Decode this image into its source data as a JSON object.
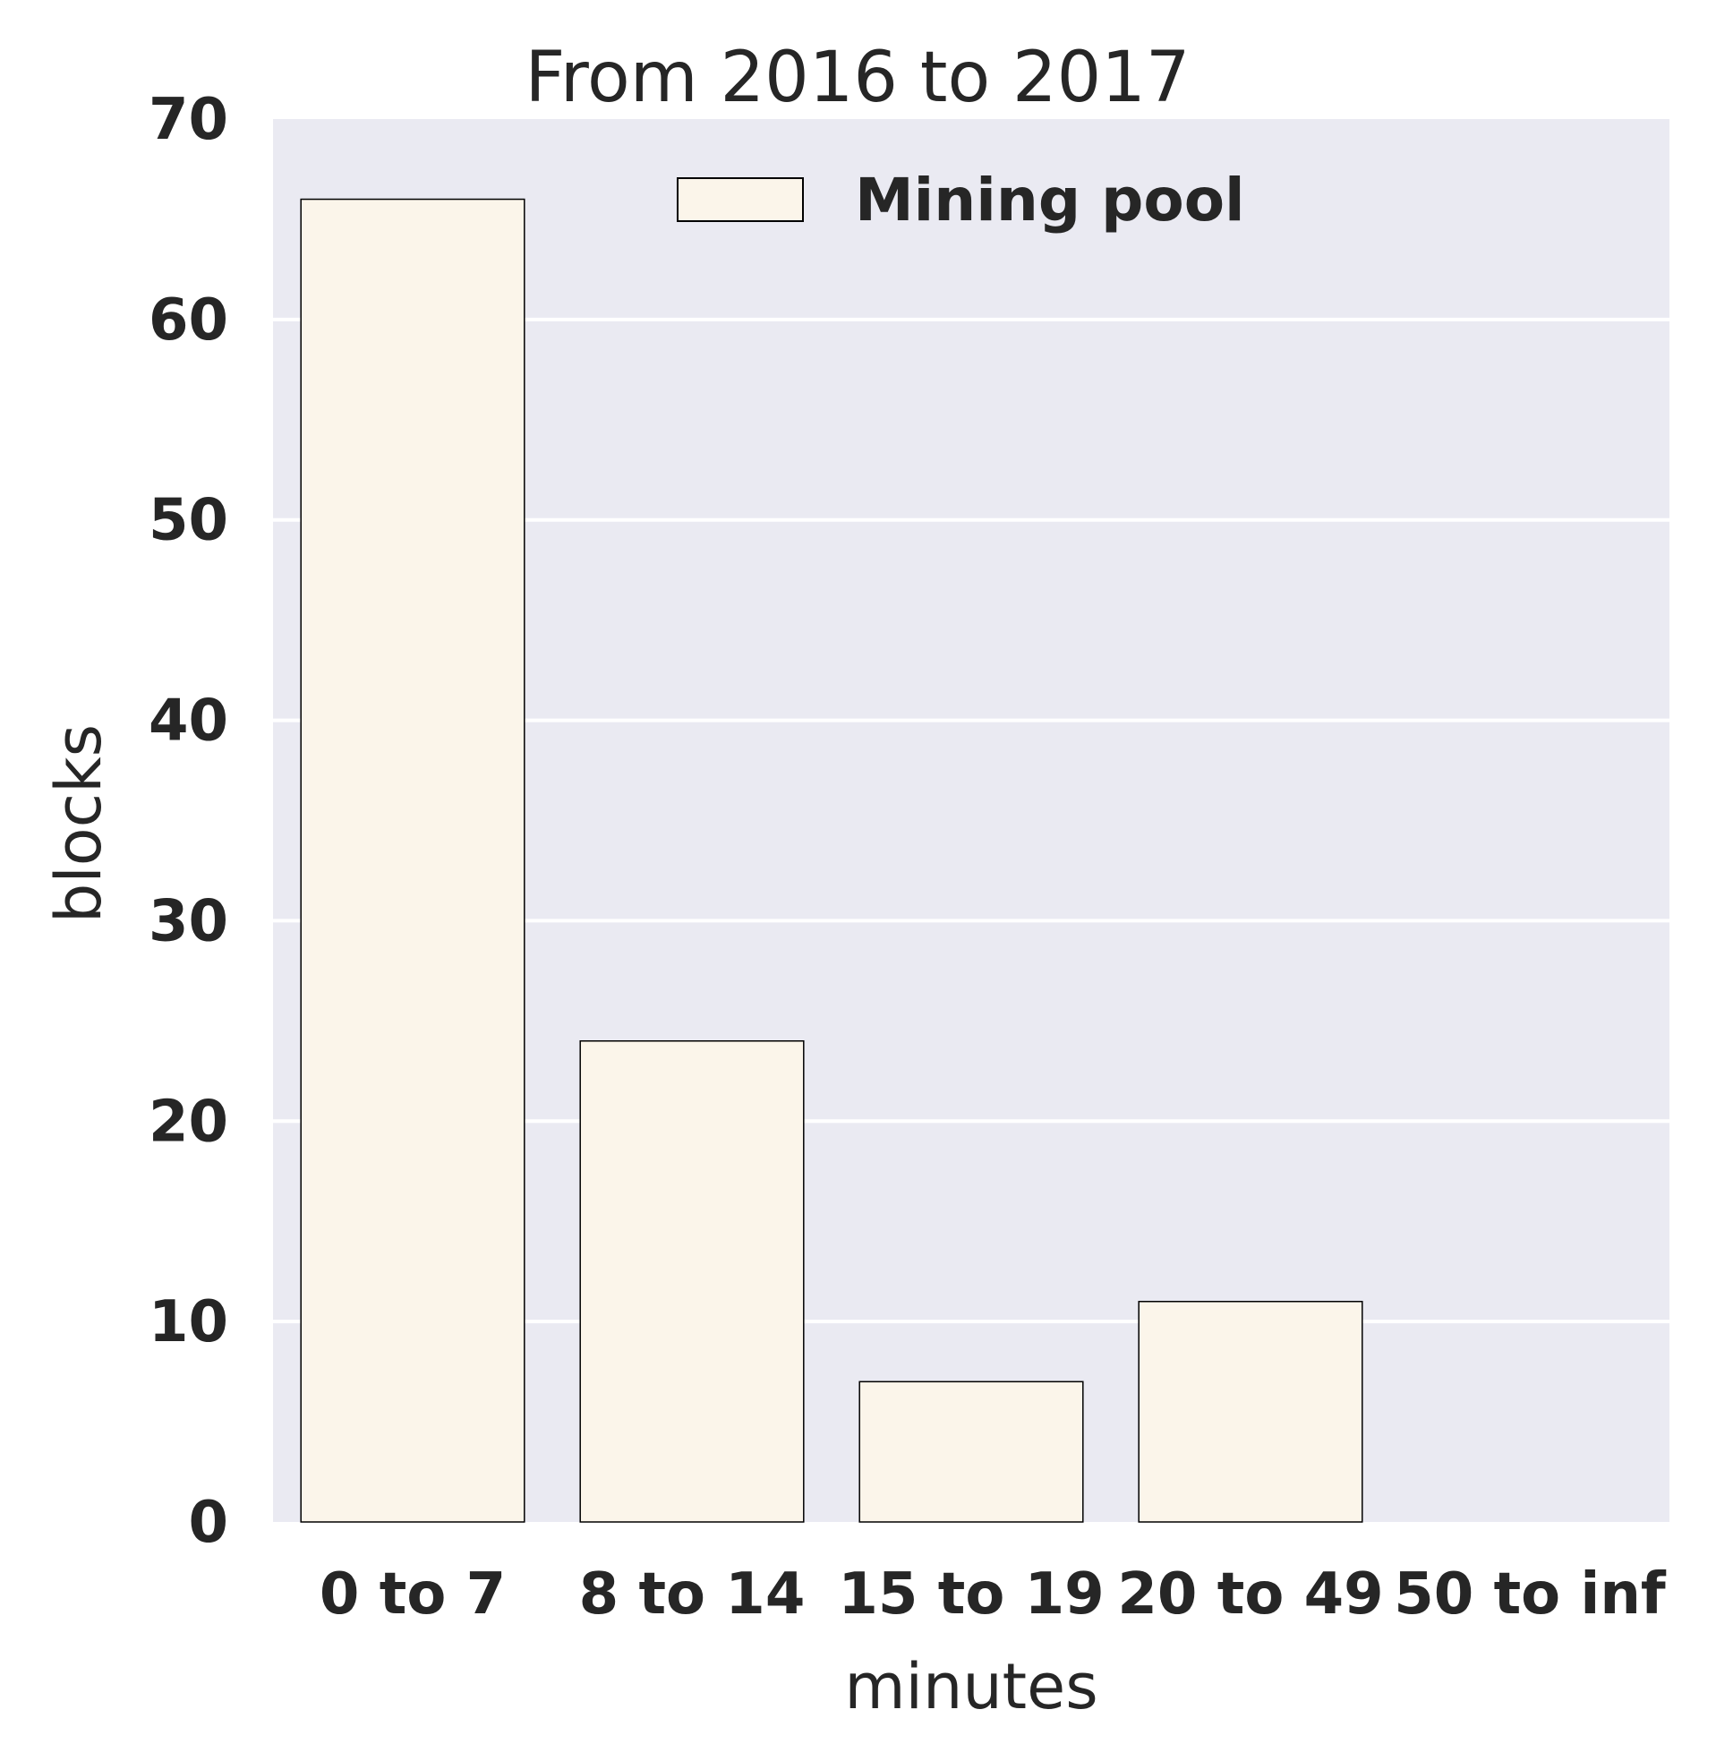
{
  "chart_data": {
    "type": "bar",
    "title": "From 2016 to 2017",
    "xlabel": "minutes",
    "ylabel": "blocks",
    "categories": [
      "0 to 7",
      "8 to 14",
      "15 to 19",
      "20 to 49",
      "50 to inf"
    ],
    "series": [
      {
        "name": "Mining pool",
        "values": [
          66,
          24,
          7,
          11,
          0
        ]
      }
    ],
    "ylim": [
      0,
      70
    ],
    "yticks": [
      0,
      10,
      20,
      30,
      40,
      50,
      60,
      70
    ],
    "grid": true,
    "legend_position": "top-center",
    "colors": {
      "plot_background": "#EAEAF2",
      "bar_fill": "#FBF5EA",
      "bar_edge": "#000000",
      "grid": "#FFFFFF",
      "text": "#262626"
    }
  }
}
